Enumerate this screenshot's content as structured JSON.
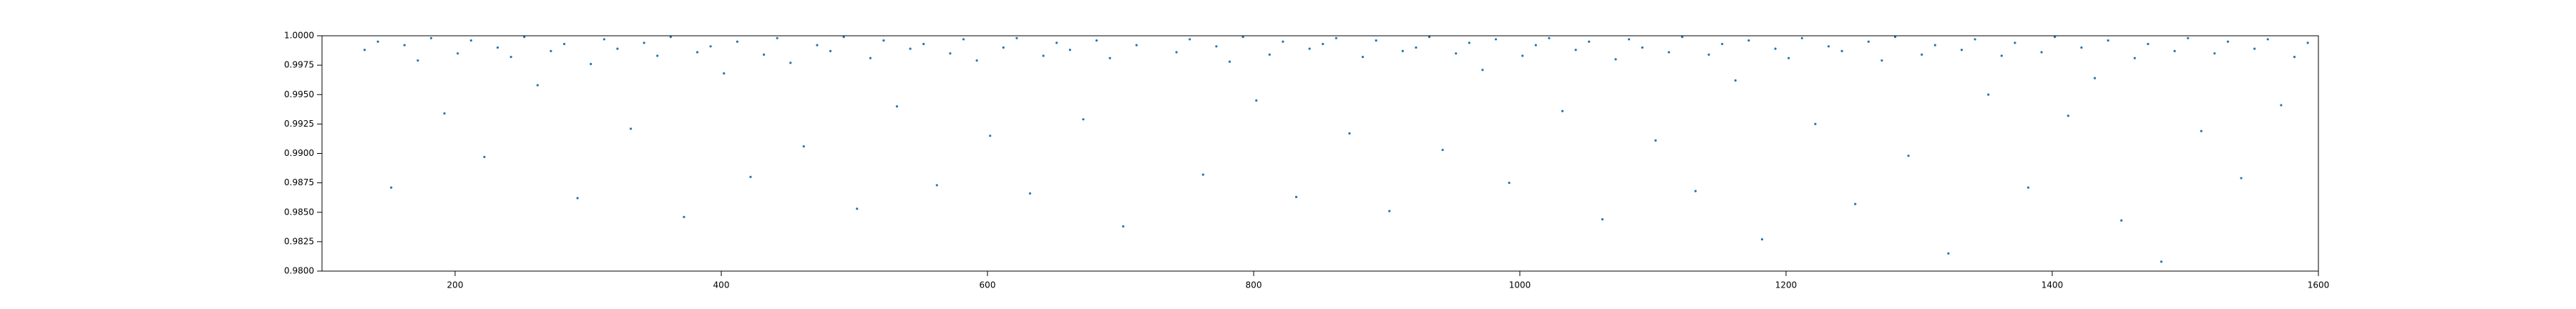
{
  "chart_data": {
    "type": "scatter",
    "color": "#1f77b4",
    "xlim": [
      100,
      1600
    ],
    "xticks": [
      200,
      400,
      600,
      800,
      1000,
      1200,
      1400,
      1600
    ],
    "ylim": [
      0.98,
      1.0
    ],
    "yticks": [
      {
        "value": 0.98,
        "label": "0.9800"
      },
      {
        "value": 0.9825,
        "label": "0.9825"
      },
      {
        "value": 0.985,
        "label": "0.9850"
      },
      {
        "value": 0.9875,
        "label": "0.9875"
      },
      {
        "value": 0.99,
        "label": "0.9900"
      },
      {
        "value": 0.9925,
        "label": "0.9925"
      },
      {
        "value": 0.995,
        "label": "0.9950"
      },
      {
        "value": 0.9975,
        "label": "0.9975"
      },
      {
        "value": 1.0,
        "label": "1.0000"
      }
    ],
    "x": [
      132,
      142,
      152,
      162,
      172,
      182,
      192,
      202,
      212,
      222,
      232,
      242,
      252,
      262,
      272,
      282,
      292,
      302,
      312,
      322,
      332,
      342,
      352,
      362,
      372,
      382,
      392,
      402,
      412,
      422,
      432,
      442,
      452,
      462,
      472,
      482,
      492,
      502,
      512,
      522,
      532,
      542,
      552,
      562,
      572,
      582,
      592,
      602,
      612,
      622,
      632,
      642,
      652,
      662,
      672,
      682,
      692,
      702,
      712,
      742,
      752,
      762,
      772,
      782,
      792,
      802,
      812,
      822,
      832,
      842,
      852,
      862,
      872,
      882,
      892,
      902,
      912,
      922,
      932,
      942,
      952,
      962,
      972,
      982,
      992,
      1002,
      1012,
      1022,
      1032,
      1042,
      1052,
      1062,
      1072,
      1082,
      1092,
      1102,
      1112,
      1122,
      1132,
      1142,
      1152,
      1162,
      1172,
      1182,
      1192,
      1202,
      1212,
      1222,
      1232,
      1242,
      1252,
      1262,
      1272,
      1282,
      1292,
      1302,
      1312,
      1322,
      1332,
      1342,
      1352,
      1362,
      1372,
      1382,
      1392,
      1402,
      1412,
      1422,
      1432,
      1442,
      1452,
      1462,
      1472,
      1482,
      1492,
      1502,
      1512,
      1522,
      1532,
      1542,
      1552,
      1562,
      1572,
      1582,
      1592
    ],
    "values": [
      0.9988,
      0.9995,
      0.9871,
      0.9992,
      0.9979,
      0.9998,
      0.9934,
      0.9985,
      0.9996,
      0.9897,
      0.999,
      0.9982,
      0.9999,
      0.9958,
      0.9987,
      0.9993,
      0.9862,
      0.9976,
      0.9997,
      0.9989,
      0.9921,
      0.9994,
      0.9983,
      0.9999,
      0.9846,
      0.9986,
      0.9991,
      0.9968,
      0.9995,
      0.988,
      0.9984,
      0.9998,
      0.9977,
      0.9906,
      0.9992,
      0.9987,
      0.9999,
      0.9853,
      0.9981,
      0.9996,
      0.994,
      0.9989,
      0.9993,
      0.9873,
      0.9985,
      0.9997,
      0.9979,
      0.9915,
      0.999,
      0.9998,
      0.9866,
      0.9983,
      0.9994,
      0.9988,
      0.9929,
      0.9996,
      0.9981,
      0.9838,
      0.9992,
      0.9986,
      0.9997,
      0.9882,
      0.9991,
      0.9978,
      0.9999,
      0.9945,
      0.9984,
      0.9995,
      0.9863,
      0.9989,
      0.9993,
      0.9998,
      0.9917,
      0.9982,
      0.9996,
      0.9851,
      0.9987,
      0.999,
      0.9999,
      0.9903,
      0.9985,
      0.9994,
      0.9971,
      0.9997,
      0.9875,
      0.9983,
      0.9992,
      0.9998,
      0.9936,
      0.9988,
      0.9995,
      0.9844,
      0.998,
      0.9997,
      0.999,
      0.9911,
      0.9986,
      0.9999,
      0.9868,
      0.9984,
      0.9993,
      0.9962,
      0.9996,
      0.9827,
      0.9989,
      0.9981,
      0.9998,
      0.9925,
      0.9991,
      0.9987,
      0.9857,
      0.9995,
      0.9979,
      0.9999,
      0.9898,
      0.9984,
      0.9992,
      0.9815,
      0.9988,
      0.9997,
      0.995,
      0.9983,
      0.9994,
      0.9871,
      0.9986,
      0.9999,
      0.9932,
      0.999,
      0.9964,
      0.9996,
      0.9843,
      0.9981,
      0.9993,
      0.9808,
      0.9987,
      0.9998,
      0.9919,
      0.9985,
      0.9995,
      0.9879,
      0.9989,
      0.9997,
      0.9941,
      0.9982,
      0.9994
    ]
  }
}
